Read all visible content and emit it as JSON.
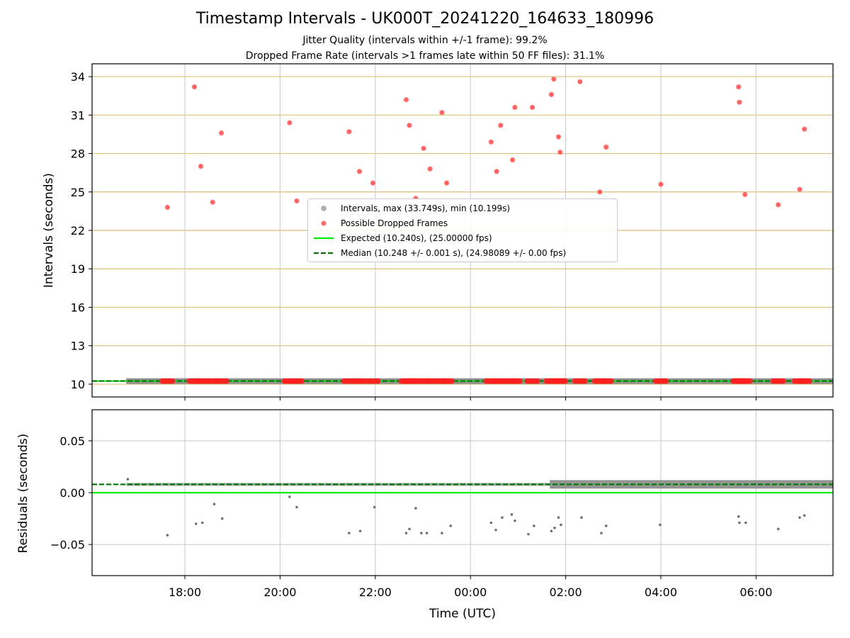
{
  "chart_data": [
    {
      "type": "scatter",
      "title": "Timestamp Intervals - UK000T_20241220_164633_180996",
      "subtitle_1": "Jitter Quality (intervals within +/-1 frame): 99.2%",
      "subtitle_2": "Dropped Frame Rate (intervals >1 frames late within 50 FF files): 31.1%",
      "xlabel": "",
      "ylabel": "Intervals (seconds)",
      "xlim": [
        "2024-12-20 16:03",
        "2024-12-21 07:37"
      ],
      "ylim": [
        9,
        35
      ],
      "yticks": [
        "10",
        "13",
        "16",
        "19",
        "22",
        "25",
        "28",
        "31",
        "34"
      ],
      "grid": true,
      "legend_position": "center",
      "series": [
        {
          "name": "Intervals, max (33.749s), min (10.199s)",
          "color": "#808080",
          "x_range": [
            "2024-12-20 16:46",
            "2024-12-21 07:37"
          ],
          "y": 10.24
        },
        {
          "name": "Possible Dropped Frames",
          "color": "#ff0000",
          "points": [
            [
              "2024-12-20 17:38",
              23.8
            ],
            [
              "2024-12-20 18:12",
              33.2
            ],
            [
              "2024-12-20 18:20",
              27.0
            ],
            [
              "2024-12-20 18:35",
              24.2
            ],
            [
              "2024-12-20 18:46",
              29.6
            ],
            [
              "2024-12-20 20:12",
              30.4
            ],
            [
              "2024-12-20 20:21",
              24.3
            ],
            [
              "2024-12-20 21:27",
              29.7
            ],
            [
              "2024-12-20 21:40",
              26.6
            ],
            [
              "2024-12-20 21:57",
              25.7
            ],
            [
              "2024-12-20 22:39",
              32.2
            ],
            [
              "2024-12-20 22:43",
              30.2
            ],
            [
              "2024-12-20 22:51",
              24.5
            ],
            [
              "2024-12-20 23:01",
              28.4
            ],
            [
              "2024-12-20 23:09",
              26.8
            ],
            [
              "2024-12-20 23:24",
              31.2
            ],
            [
              "2024-12-20 23:30",
              25.7
            ],
            [
              "2024-12-21 00:26",
              28.9
            ],
            [
              "2024-12-21 00:33",
              26.6
            ],
            [
              "2024-12-21 00:38",
              30.2
            ],
            [
              "2024-12-21 00:53",
              27.5
            ],
            [
              "2024-12-21 00:56",
              31.6
            ],
            [
              "2024-12-21 01:18",
              31.6
            ],
            [
              "2024-12-21 01:42",
              32.6
            ],
            [
              "2024-12-21 01:45",
              33.8
            ],
            [
              "2024-12-21 01:51",
              29.3
            ],
            [
              "2024-12-21 01:53",
              28.1
            ],
            [
              "2024-12-21 02:18",
              33.6
            ],
            [
              "2024-12-21 02:43",
              25.0
            ],
            [
              "2024-12-21 02:51",
              28.5
            ],
            [
              "2024-12-21 04:00",
              25.6
            ],
            [
              "2024-12-21 05:38",
              33.2
            ],
            [
              "2024-12-21 05:39",
              32.0
            ],
            [
              "2024-12-21 05:46",
              24.8
            ],
            [
              "2024-12-21 06:28",
              24.0
            ],
            [
              "2024-12-21 06:55",
              25.2
            ],
            [
              "2024-12-21 07:01",
              29.9
            ]
          ]
        },
        {
          "name": "Expected (10.240s), (25.00000 fps)",
          "color": "#00ee00",
          "y": 10.24
        },
        {
          "name": "Median (10.248 +/- 0.001 s), (24.98089 +/- 0.00 fps)",
          "color": "#007700",
          "y": 10.248
        }
      ]
    },
    {
      "type": "scatter",
      "xlabel": "Time (UTC)",
      "ylabel": "Residuals (seconds)",
      "xlim": [
        "2024-12-20 16:03",
        "2024-12-21 07:37"
      ],
      "ylim": [
        -0.08,
        0.08
      ],
      "yticks": [
        "0.05",
        "0.00",
        "−0.05"
      ],
      "xticks": [
        "18:00",
        "20:00",
        "22:00",
        "00:00",
        "02:00",
        "04:00",
        "06:00"
      ],
      "grid": true,
      "expected_line": 0.0,
      "median_line": 0.008,
      "outliers": [
        [
          "2024-12-20 16:48",
          0.013
        ],
        [
          "2024-12-20 17:38",
          -0.041
        ],
        [
          "2024-12-20 18:14",
          -0.03
        ],
        [
          "2024-12-20 18:22",
          -0.029
        ],
        [
          "2024-12-20 18:37",
          -0.011
        ],
        [
          "2024-12-20 18:47",
          -0.025
        ],
        [
          "2024-12-20 20:12",
          -0.004
        ],
        [
          "2024-12-20 20:21",
          -0.014
        ],
        [
          "2024-12-20 21:27",
          -0.039
        ],
        [
          "2024-12-20 21:41",
          -0.037
        ],
        [
          "2024-12-20 21:59",
          -0.014
        ],
        [
          "2024-12-20 22:39",
          -0.039
        ],
        [
          "2024-12-20 22:43",
          -0.035
        ],
        [
          "2024-12-20 22:51",
          -0.015
        ],
        [
          "2024-12-20 22:58",
          -0.039
        ],
        [
          "2024-12-20 23:05",
          -0.039
        ],
        [
          "2024-12-20 23:24",
          -0.039
        ],
        [
          "2024-12-20 23:35",
          -0.032
        ],
        [
          "2024-12-21 00:26",
          -0.029
        ],
        [
          "2024-12-21 00:32",
          -0.036
        ],
        [
          "2024-12-21 00:40",
          -0.024
        ],
        [
          "2024-12-21 00:52",
          -0.021
        ],
        [
          "2024-12-21 00:56",
          -0.027
        ],
        [
          "2024-12-21 01:13",
          -0.04
        ],
        [
          "2024-12-21 01:20",
          -0.032
        ],
        [
          "2024-12-21 01:42",
          -0.037
        ],
        [
          "2024-12-21 01:46",
          -0.034
        ],
        [
          "2024-12-21 01:51",
          -0.024
        ],
        [
          "2024-12-21 01:54",
          -0.031
        ],
        [
          "2024-12-21 02:20",
          -0.024
        ],
        [
          "2024-12-21 02:45",
          -0.039
        ],
        [
          "2024-12-21 02:51",
          -0.032
        ],
        [
          "2024-12-21 03:59",
          -0.031
        ],
        [
          "2024-12-21 05:38",
          -0.023
        ],
        [
          "2024-12-21 05:39",
          -0.029
        ],
        [
          "2024-12-21 05:47",
          -0.029
        ],
        [
          "2024-12-21 06:28",
          -0.035
        ],
        [
          "2024-12-21 06:55",
          -0.024
        ],
        [
          "2024-12-21 07:01",
          -0.022
        ]
      ]
    }
  ]
}
